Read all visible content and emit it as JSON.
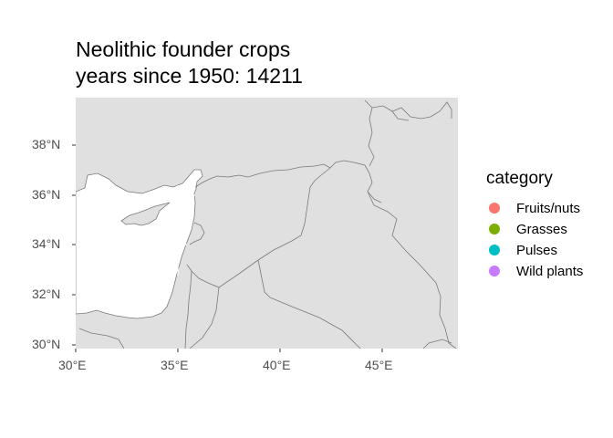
{
  "title_lines": [
    "Neolithic founder crops",
    "years since 1950: 14211"
  ],
  "axes": {
    "x_ticks": [
      "30°E",
      "35°E",
      "40°E",
      "45°E"
    ],
    "y_ticks": [
      "38°N",
      "36°N",
      "34°N",
      "32°N",
      "30°N"
    ]
  },
  "legend": {
    "title": "category",
    "items": [
      {
        "label": "Fruits/nuts",
        "color": "#F8766D"
      },
      {
        "label": "Grasses",
        "color": "#7CAE00"
      },
      {
        "label": "Pulses",
        "color": "#00BFC4"
      },
      {
        "label": "Wild plants",
        "color": "#C77CFF"
      }
    ]
  },
  "colors": {
    "land": "#e0e0e0",
    "sea": "#ffffff",
    "border": "#7a7a7a",
    "grid": "#ffffff"
  }
}
